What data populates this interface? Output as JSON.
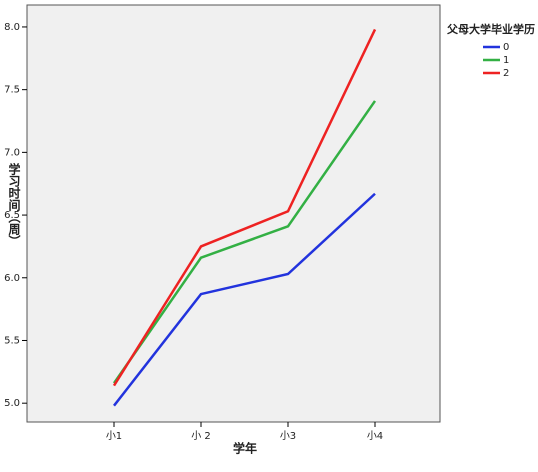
{
  "chart_data": {
    "type": "line",
    "categories": [
      "小1",
      "小 2",
      "小3",
      "小4"
    ],
    "xlabel": "学年",
    "ylabel": "学习时间（周）",
    "legend_title": "父母大学毕业学历",
    "series": [
      {
        "name": "0",
        "color": "#2233dd",
        "values": [
          4.98,
          5.87,
          6.03,
          6.67
        ]
      },
      {
        "name": "1",
        "color": "#33b044",
        "values": [
          5.16,
          6.16,
          6.41,
          7.41
        ]
      },
      {
        "name": "2",
        "color": "#ee2222",
        "values": [
          5.14,
          6.25,
          6.53,
          7.98
        ]
      }
    ],
    "ylim": [
      4.85,
      8.175
    ],
    "yticks": [
      {
        "value": 5,
        "label": "5.0"
      },
      5.5,
      {
        "value": 6,
        "label": "6.0"
      },
      6.5,
      {
        "value": 7,
        "label": "7.0"
      },
      7.5,
      {
        "value": 8,
        "label": "8.0"
      }
    ]
  }
}
